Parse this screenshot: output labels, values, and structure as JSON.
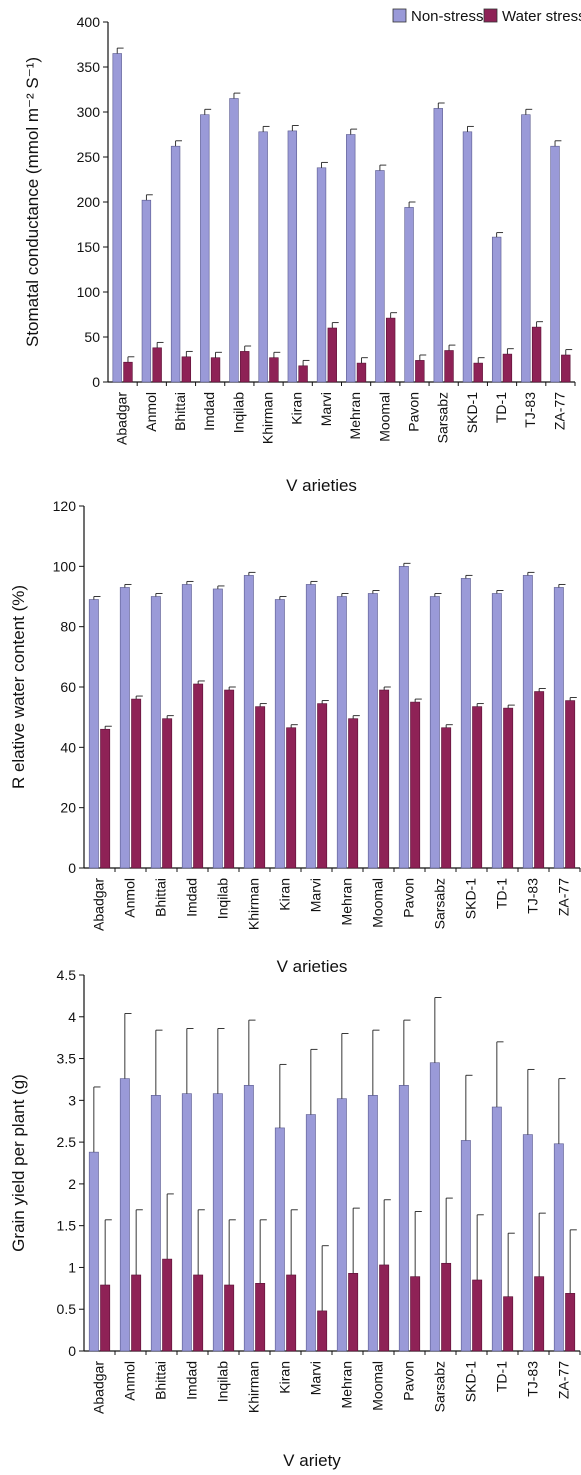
{
  "colors": {
    "non_stress": "#9a9ad8",
    "non_stress_edge": "#5a5a8e",
    "water_stress": "#8e2256",
    "water_stress_edge": "#5a1035",
    "axis": "#111111"
  },
  "legend": {
    "items": [
      {
        "label": "Non-stress",
        "color": "#9a9ad8"
      },
      {
        "label": "Water stress",
        "color": "#8e2256"
      }
    ]
  },
  "chart_data": [
    {
      "type": "bar",
      "ylabel": "Stomatal conductance (mmol m⁻² S⁻¹)",
      "xlabel": "V arieties",
      "ylim": [
        0,
        400
      ],
      "yticks": [
        "0",
        "50",
        "100",
        "150",
        "200",
        "250",
        "300",
        "350",
        "400"
      ],
      "categories": [
        "Abadgar",
        "Anmol",
        "Bhittai",
        "Imdad",
        "Inqilab",
        "Khirman",
        "Kiran",
        "Marvi",
        "Mehran",
        "Moomal",
        "Pavon",
        "Sarsabz",
        "SKD-1",
        "TD-1",
        "TJ-83",
        "ZA-77"
      ],
      "series": [
        {
          "name": "Non-stress",
          "values": [
            365,
            202,
            262,
            297,
            315,
            278,
            279,
            238,
            275,
            235,
            194,
            304,
            278,
            161,
            297,
            262
          ],
          "errors": [
            6,
            6,
            6,
            6,
            6,
            6,
            6,
            6,
            6,
            6,
            6,
            6,
            6,
            5,
            6,
            6
          ]
        },
        {
          "name": "Water stress",
          "values": [
            22,
            38,
            28,
            27,
            34,
            27,
            18,
            60,
            21,
            71,
            24,
            35,
            21,
            31,
            61,
            30
          ],
          "errors": [
            6,
            6,
            6,
            6,
            6,
            6,
            6,
            6,
            6,
            6,
            6,
            6,
            6,
            6,
            6,
            6
          ]
        }
      ]
    },
    {
      "type": "bar",
      "ylabel": "R elative water content (%)",
      "xlabel": "V arieties",
      "ylim": [
        0,
        120
      ],
      "yticks": [
        "0",
        "20",
        "40",
        "60",
        "80",
        "100",
        "120"
      ],
      "categories": [
        "Abadgar",
        "Anmol",
        "Bhittai",
        "Imdad",
        "Inqilab",
        "Khirman",
        "Kiran",
        "Marvi",
        "Mehran",
        "Moomal",
        "Pavon",
        "Sarsabz",
        "SKD-1",
        "TD-1",
        "TJ-83",
        "ZA-77"
      ],
      "series": [
        {
          "name": "Non-stress",
          "values": [
            89,
            93,
            90,
            94,
            92.5,
            97,
            89,
            94,
            90,
            91,
            100,
            90,
            96,
            91,
            97,
            93
          ],
          "errors": [
            1,
            1,
            1,
            1,
            1,
            1,
            1,
            1,
            1,
            1,
            1,
            1,
            1,
            1,
            1,
            1
          ]
        },
        {
          "name": "Water stress",
          "values": [
            46,
            56,
            49.5,
            61,
            59,
            53.5,
            46.5,
            54.5,
            49.5,
            59,
            55,
            46.5,
            53.5,
            53,
            58.5,
            55.5
          ],
          "errors": [
            1,
            1,
            1,
            1,
            1,
            1,
            1,
            1,
            1,
            1,
            1,
            1,
            1,
            1,
            1,
            1
          ]
        }
      ]
    },
    {
      "type": "bar",
      "ylabel": "Grain yield per plant (g)",
      "xlabel": "V ariety",
      "ylim": [
        0,
        4.5
      ],
      "yticks": [
        "0",
        "0.5",
        "1",
        "1.5",
        "2",
        "2.5",
        "3",
        "3.5",
        "4",
        "4.5"
      ],
      "categories": [
        "Abadgar",
        "Anmol",
        "Bhittai",
        "Imdad",
        "Inqilab",
        "Khirman",
        "Kiran",
        "Marvi",
        "Mehran",
        "Moomal",
        "Pavon",
        "Sarsabz",
        "SKD-1",
        "TD-1",
        "TJ-83",
        "ZA-77"
      ],
      "series": [
        {
          "name": "Non-stress",
          "values": [
            2.38,
            3.26,
            3.06,
            3.08,
            3.08,
            3.18,
            2.67,
            2.83,
            3.02,
            3.06,
            3.18,
            3.45,
            2.52,
            2.92,
            2.59,
            2.48
          ],
          "errors": [
            0.78,
            0.78,
            0.78,
            0.78,
            0.78,
            0.78,
            0.76,
            0.78,
            0.78,
            0.78,
            0.78,
            0.78,
            0.78,
            0.78,
            0.78,
            0.78
          ]
        },
        {
          "name": "Water stress",
          "values": [
            0.79,
            0.91,
            1.1,
            0.91,
            0.79,
            0.81,
            0.91,
            0.48,
            0.93,
            1.03,
            0.89,
            1.05,
            0.85,
            0.65,
            0.89,
            0.69
          ],
          "errors": [
            0.78,
            0.78,
            0.78,
            0.78,
            0.78,
            0.76,
            0.78,
            0.78,
            0.78,
            0.78,
            0.78,
            0.78,
            0.78,
            0.76,
            0.76,
            0.76
          ]
        }
      ]
    }
  ]
}
